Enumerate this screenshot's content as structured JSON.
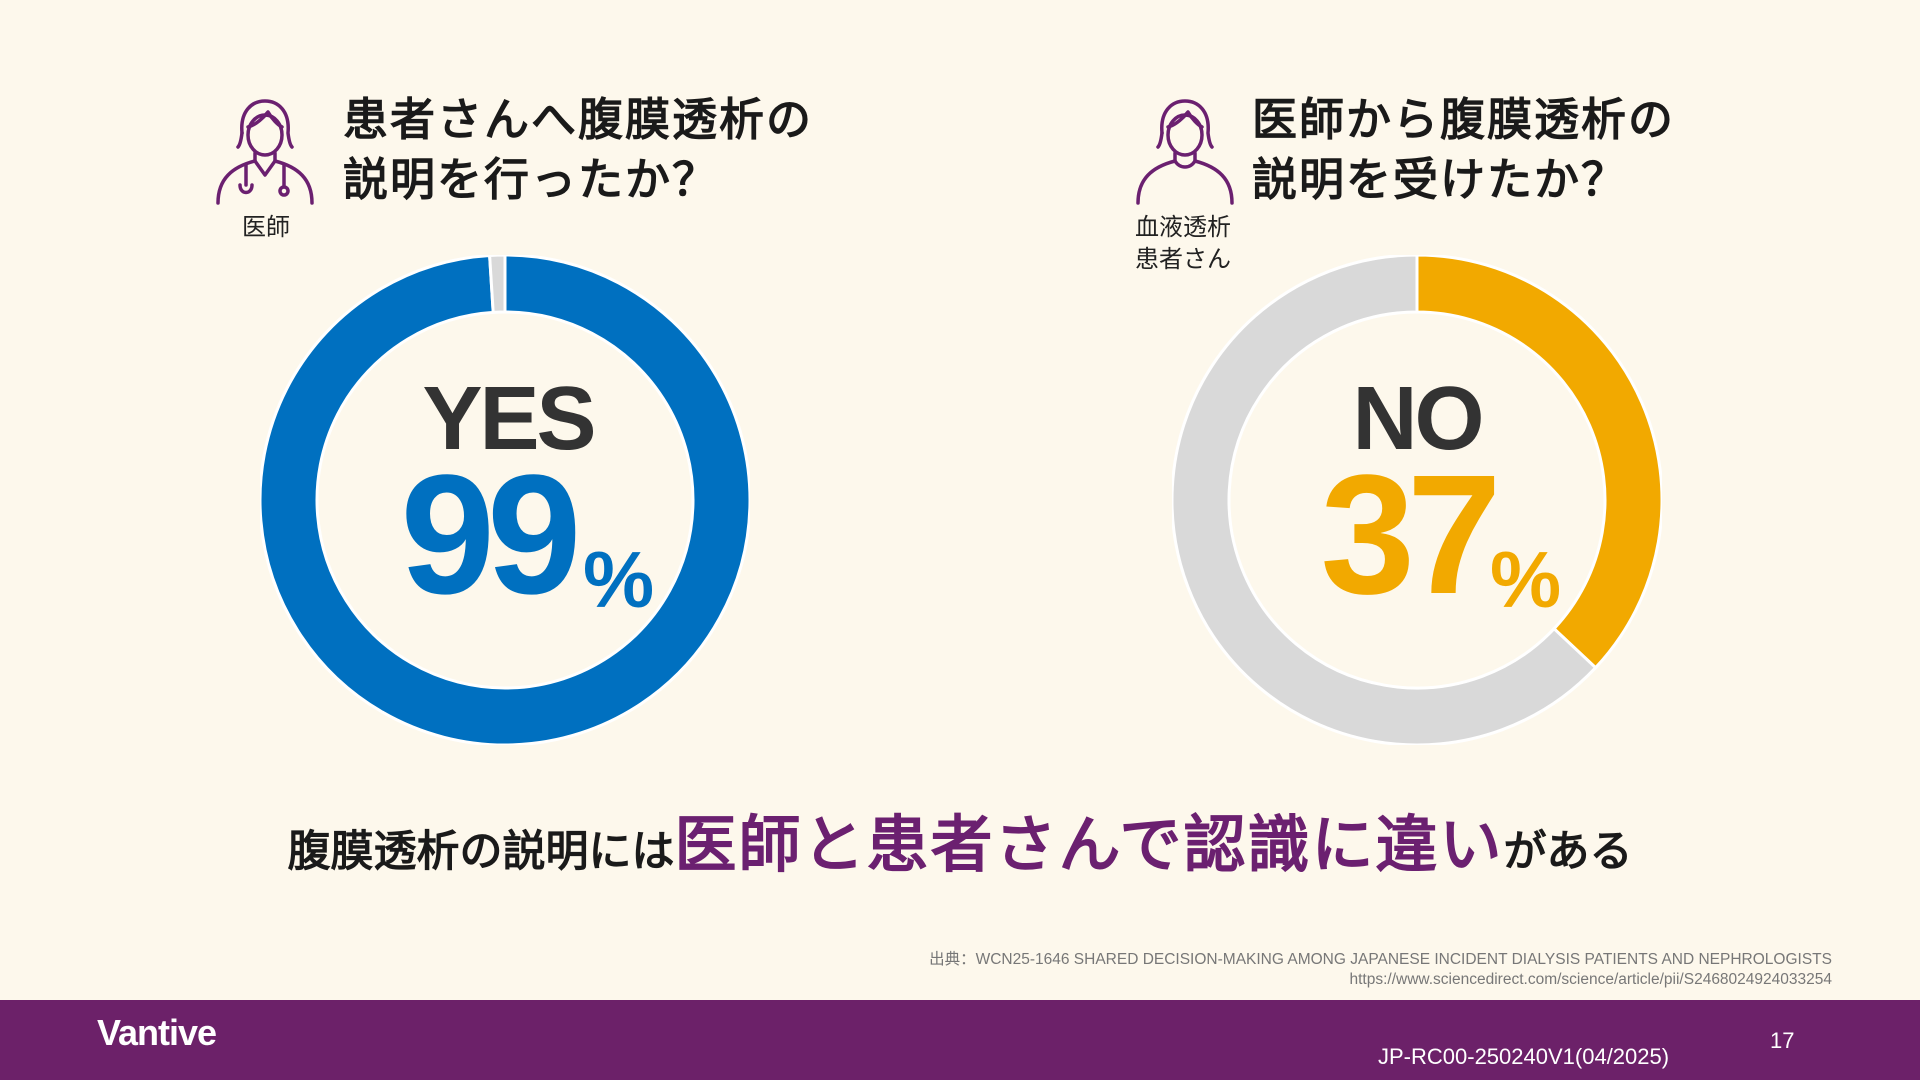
{
  "colors": {
    "background": "#fdf8ec",
    "left_accent": "#0070c0",
    "right_accent": "#f2a900",
    "remainder": "#d9d9d9",
    "purple": "#6b2070",
    "footer": "#6c2169"
  },
  "left": {
    "icon": "doctor-icon",
    "role_lines": [
      "医師"
    ],
    "question_lines": [
      "患者さんへ腹膜透析の",
      "説明を行ったか？"
    ],
    "answer": "YES",
    "percent": "99",
    "percent_sign": "%"
  },
  "right": {
    "icon": "patient-icon",
    "role_lines": [
      "血液透析",
      "患者さん"
    ],
    "question_lines": [
      "医師から腹膜透析の",
      "説明を受けたか？"
    ],
    "answer": "NO",
    "percent": "37",
    "percent_sign": "%"
  },
  "chart_data": [
    {
      "type": "pie",
      "categories": [
        "YES",
        ""
      ],
      "values": [
        99,
        1
      ],
      "colors": [
        "#0070c0",
        "#d9d9d9"
      ]
    },
    {
      "type": "pie",
      "categories": [
        "NO",
        ""
      ],
      "values": [
        37,
        63
      ],
      "colors": [
        "#f2a900",
        "#d9d9d9"
      ]
    }
  ],
  "conclusion": {
    "pre": "腹膜透析の説明には",
    "highlight": "医師と患者さんで認識に違い",
    "post": "がある"
  },
  "source": {
    "line1": "出典：WCN25-1646 SHARED DECISION-MAKING AMONG JAPANESE INCIDENT DIALYSIS PATIENTS AND NEPHROLOGISTS",
    "line2": "https://www.sciencedirect.com/science/article/pii/S2468024924033254"
  },
  "footer": {
    "logo": "Vantive",
    "doc_code": "JP-RC00-250240V1(04/2025)",
    "page_number": "17"
  }
}
